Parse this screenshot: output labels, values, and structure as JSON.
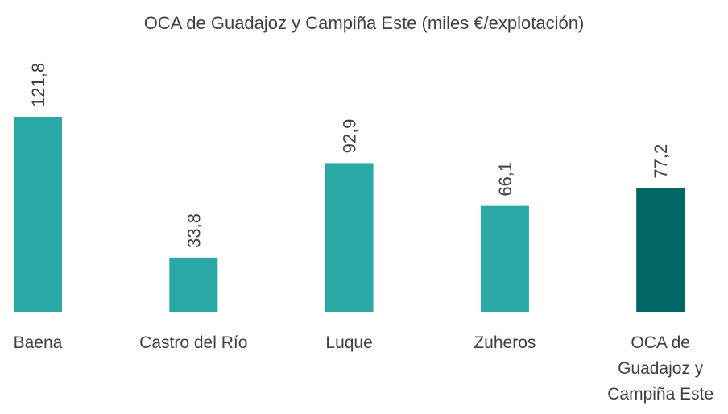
{
  "chart_data": {
    "type": "bar",
    "title": "OCA de Guadajoz y Campiña Este (miles €/explotación)",
    "categories": [
      "Baena",
      "Castro del Río",
      "Luque",
      "Zuheros",
      "OCA de Guadajoz y Campiña Este"
    ],
    "values": [
      121.8,
      33.8,
      92.9,
      66.1,
      77.2
    ],
    "value_labels": [
      "121,8",
      "33,8",
      "92,9",
      "66,1",
      "77,2"
    ],
    "colors": [
      "#2aa8a6",
      "#2aa8a6",
      "#2aa8a6",
      "#2aa8a6",
      "#006666"
    ]
  }
}
